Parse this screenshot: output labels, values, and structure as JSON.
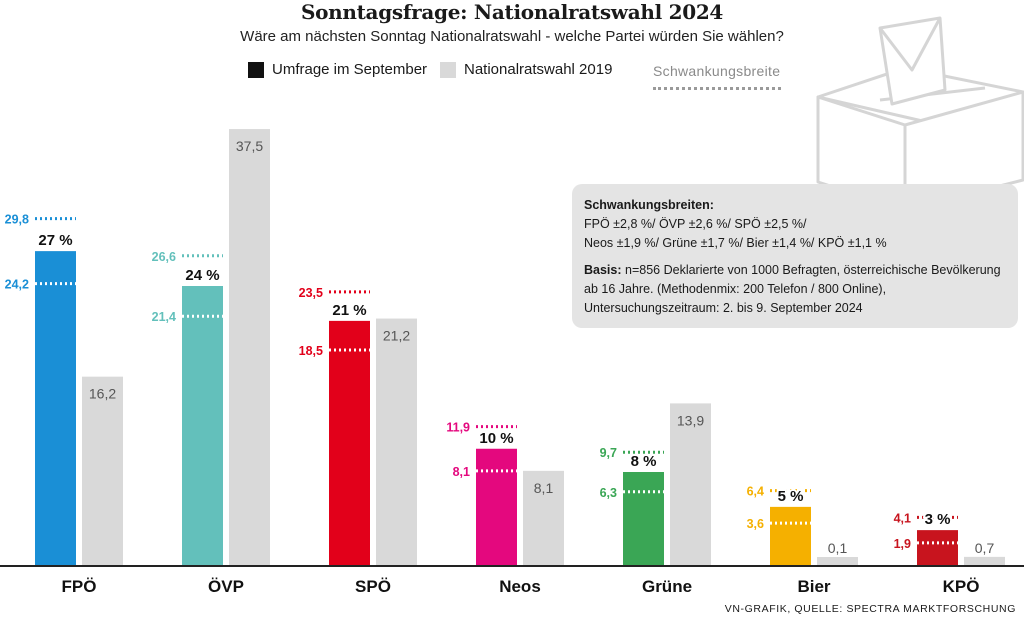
{
  "header": {
    "title": "Sonntagsfrage: Nationalratswahl 2024",
    "subtitle": "Wäre am nächsten Sonntag Nationalratswahl - welche Partei würden Sie wählen?"
  },
  "legend": {
    "survey_label": "Umfrage im September",
    "election_label": "Nationalratswahl 2019",
    "range_label": "Schwankungsbreite"
  },
  "infobox": {
    "range_heading": "Schwankungsbreiten:",
    "range_line1": "FPÖ ±2,8 %/ ÖVP ±2,6 %/ SPÖ  ±2,5 %/",
    "range_line2": "Neos ±1,9 %/ Grüne ±1,7 %/ Bier ±1,4 %/ KPÖ ±1,1 %",
    "basis_heading": "Basis:",
    "basis_line1": " n=856 Deklarierte von 1000 Befragten, österreichische Bevölkerung",
    "basis_line2": "ab 16 Jahre. (Methodenmix: 200 Telefon / 800 Online),",
    "basis_line3": "Untersuchungszeitraum: 2. bis 9. September 2024"
  },
  "source": "VN-GRAFIK, QUELLE: SPECTRA MARKTFORSCHUNG",
  "colors": {
    "election_bar": "#d9d9d9",
    "election_text": "#555555",
    "range_legend": "#9a9a9a"
  },
  "chart_data": {
    "type": "bar",
    "title": "Sonntagsfrage: Nationalratswahl 2024",
    "ylim": [
      0,
      40
    ],
    "categories": [
      "FPÖ",
      "ÖVP",
      "SPÖ",
      "Neos",
      "Grüne",
      "Bier",
      "KPÖ"
    ],
    "series": [
      {
        "name": "Umfrage im September",
        "values": [
          27,
          24,
          21,
          10,
          8,
          5,
          3
        ],
        "labels": [
          "27 %",
          "24 %",
          "21 %",
          "10 %",
          "8 %",
          "5 %",
          "3 %"
        ]
      },
      {
        "name": "Nationalratswahl 2019",
        "values": [
          16.2,
          37.5,
          21.2,
          8.1,
          13.9,
          0.1,
          0.7
        ],
        "labels": [
          "16,2",
          "37,5",
          "21,2",
          "8,1",
          "13,9",
          "0,1",
          "0,7"
        ]
      }
    ],
    "ranges": [
      {
        "low": 24.2,
        "high": 29.8,
        "low_label": "24,2",
        "high_label": "29,8"
      },
      {
        "low": 21.4,
        "high": 26.6,
        "low_label": "21,4",
        "high_label": "26,6"
      },
      {
        "low": 18.5,
        "high": 23.5,
        "low_label": "18,5",
        "high_label": "23,5"
      },
      {
        "low": 8.1,
        "high": 11.9,
        "low_label": "8,1",
        "high_label": "11,9"
      },
      {
        "low": 6.3,
        "high": 9.7,
        "low_label": "6,3",
        "high_label": "9,7"
      },
      {
        "low": 3.6,
        "high": 6.4,
        "low_label": "3,6",
        "high_label": "6,4"
      },
      {
        "low": 1.9,
        "high": 4.1,
        "low_label": "1,9",
        "high_label": "4,1"
      }
    ],
    "party_colors": [
      "#1a8fd6",
      "#63c0bb",
      "#e2001a",
      "#e4087e",
      "#3aa655",
      "#f5b000",
      "#c8141e"
    ]
  }
}
